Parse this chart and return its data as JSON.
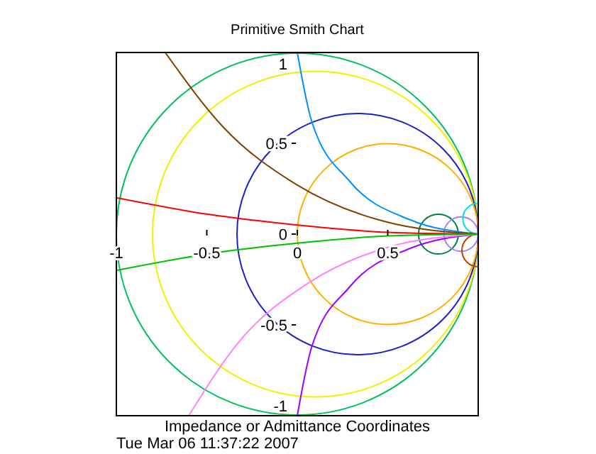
{
  "chart_data": {
    "type": "line",
    "title": "Primitive Smith Chart",
    "xlabel": "Impedance or Admittance Coordinates",
    "annotations": [
      "Tue Mar 06 11:37:22 2007"
    ],
    "xlim": [
      -1,
      1
    ],
    "ylim": [
      -1,
      1
    ],
    "xticks": [
      -1,
      -0.5,
      0,
      0.5
    ],
    "yticks": [
      -1,
      -0.5,
      0,
      0.5,
      1
    ],
    "grid": false,
    "series": [
      {
        "color": "#0090ff",
        "x": [
          0,
          0.08,
          0.29,
          0.62,
          1
        ],
        "values": [
          1,
          0.62,
          0.29,
          0.08,
          0
        ]
      },
      {
        "color": "#a000ff",
        "x": [
          0,
          0.08,
          0.29,
          0.62,
          1
        ],
        "values": [
          -1,
          -0.62,
          -0.29,
          -0.08,
          0
        ]
      },
      {
        "color": "#804000",
        "x": [
          -0.73,
          -0.41,
          0,
          0.48,
          1
        ],
        "values": [
          1,
          0.59,
          0.27,
          0.07,
          0
        ]
      },
      {
        "color": "#ff80ff",
        "x": [
          -0.6,
          -0.32,
          0.06,
          0.51,
          1
        ],
        "values": [
          -1,
          -0.59,
          -0.27,
          -0.07,
          0
        ]
      },
      {
        "color": "#ff0000",
        "x": [
          -1,
          -0.5,
          0,
          0.5,
          1
        ],
        "values": [
          0.2,
          0.11,
          0.05,
          0.01,
          0
        ]
      },
      {
        "color": "#00c000",
        "x": [
          -1,
          -0.5,
          0,
          0.5,
          1
        ],
        "values": [
          -0.2,
          -0.11,
          -0.05,
          -0.01,
          0
        ]
      }
    ]
  }
}
